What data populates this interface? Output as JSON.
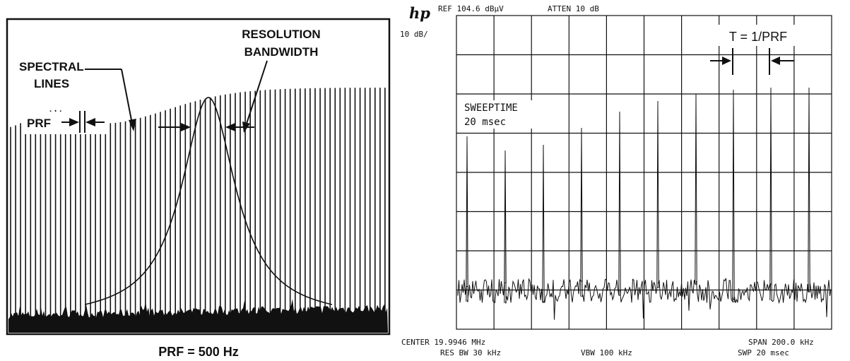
{
  "left_panel": {
    "label_resolution": "RESOLUTION",
    "label_bandwidth": "BANDWIDTH",
    "label_spectral": "SPECTRAL",
    "label_lines": "LINES",
    "label_prf": "PRF",
    "caption": "PRF = 500 Hz"
  },
  "right_panel": {
    "logo": "hp",
    "header_ref": "REF 104.6 dBµV",
    "header_atten": "ATTEN 10 dB",
    "scale": "10 dB/",
    "period_label": "T = 1/PRF",
    "sweeptime_label": "SWEEPTIME",
    "sweeptime_value": "20 msec",
    "center": "CENTER 19.9946 MHz",
    "span": "SPAN 200.0 kHz",
    "res_bw": "RES BW 30 kHz",
    "vbw": "VBW 100 kHz",
    "swp": "SWP 20 msec"
  },
  "colors": {
    "ink": "#111111",
    "background": "#ffffff"
  }
}
